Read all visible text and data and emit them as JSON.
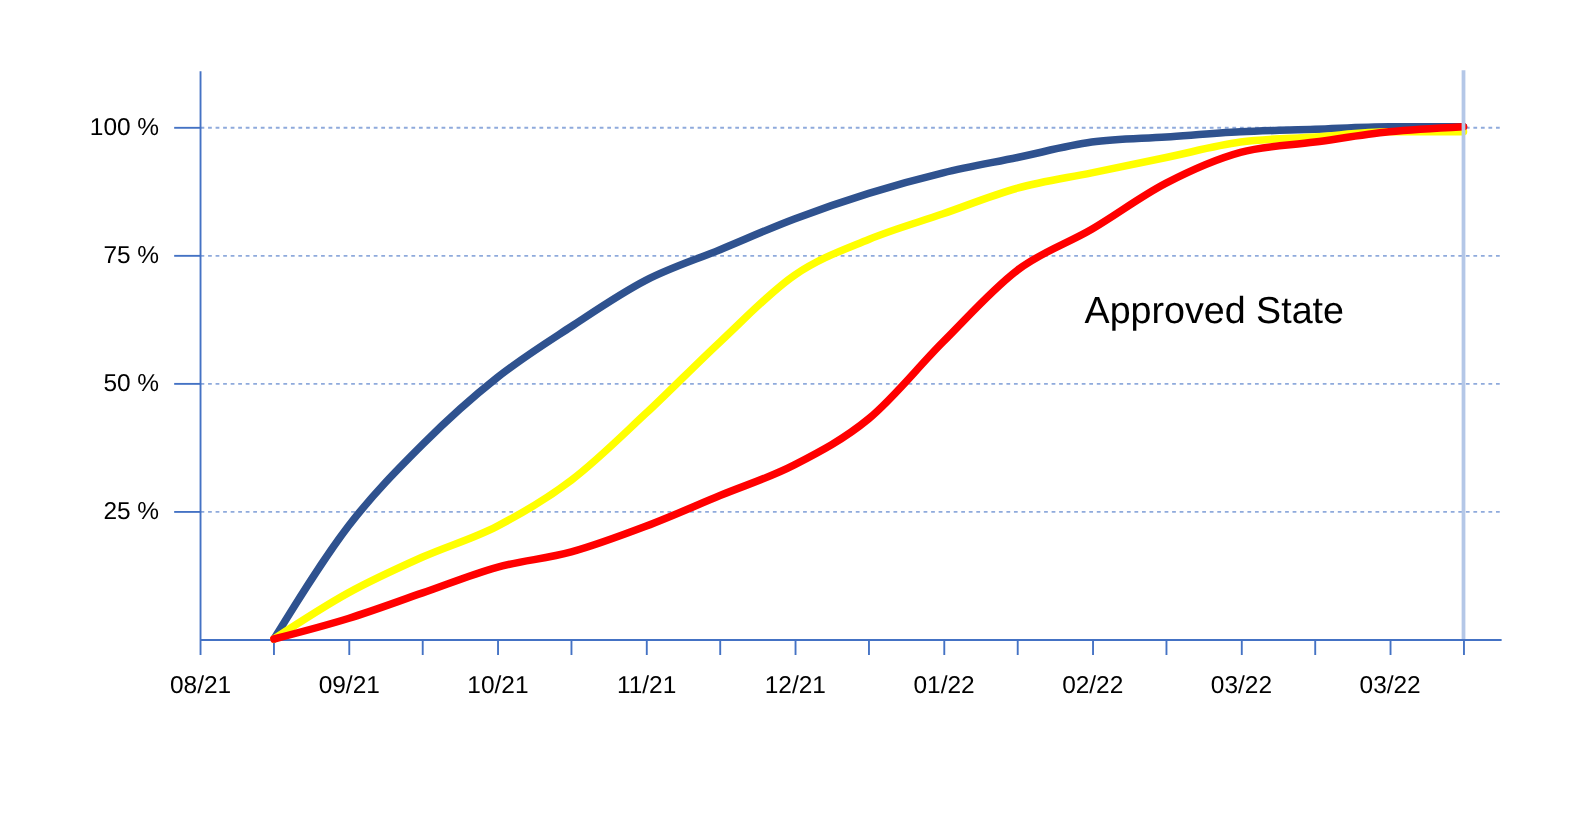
{
  "chart_data": {
    "type": "line",
    "categories": [
      "08/21",
      null,
      "09/21",
      null,
      "10/21",
      null,
      "11/21",
      null,
      "12/21",
      null,
      "01/22",
      null,
      "02/22",
      null,
      "03/22",
      null,
      "03/22",
      null
    ],
    "ylim": [
      0,
      111
    ],
    "yticks": [
      {
        "value": 25,
        "label": "25 %"
      },
      {
        "value": 50,
        "label": "50 %"
      },
      {
        "value": 75,
        "label": "75 %"
      },
      {
        "value": 100,
        "label": "100 %"
      }
    ],
    "grid": "y",
    "annotations": [
      "Approved State"
    ],
    "series": [
      {
        "color": "#2f528f",
        "values": [
          null,
          0,
          22,
          38,
          51,
          61,
          70,
          76,
          82,
          87,
          91,
          94,
          97,
          98,
          99,
          99.5,
          100,
          100
        ]
      },
      {
        "color": "#ffff00",
        "values": [
          null,
          0,
          9,
          16,
          22,
          31,
          44,
          58,
          71,
          78,
          83,
          88,
          91,
          94,
          97,
          98,
          99,
          99
        ]
      },
      {
        "color": "#ff0000",
        "values": [
          null,
          0,
          4,
          9,
          14,
          17,
          22,
          28,
          34,
          43,
          58,
          72,
          80,
          89,
          95,
          97,
          99,
          100
        ]
      }
    ]
  }
}
